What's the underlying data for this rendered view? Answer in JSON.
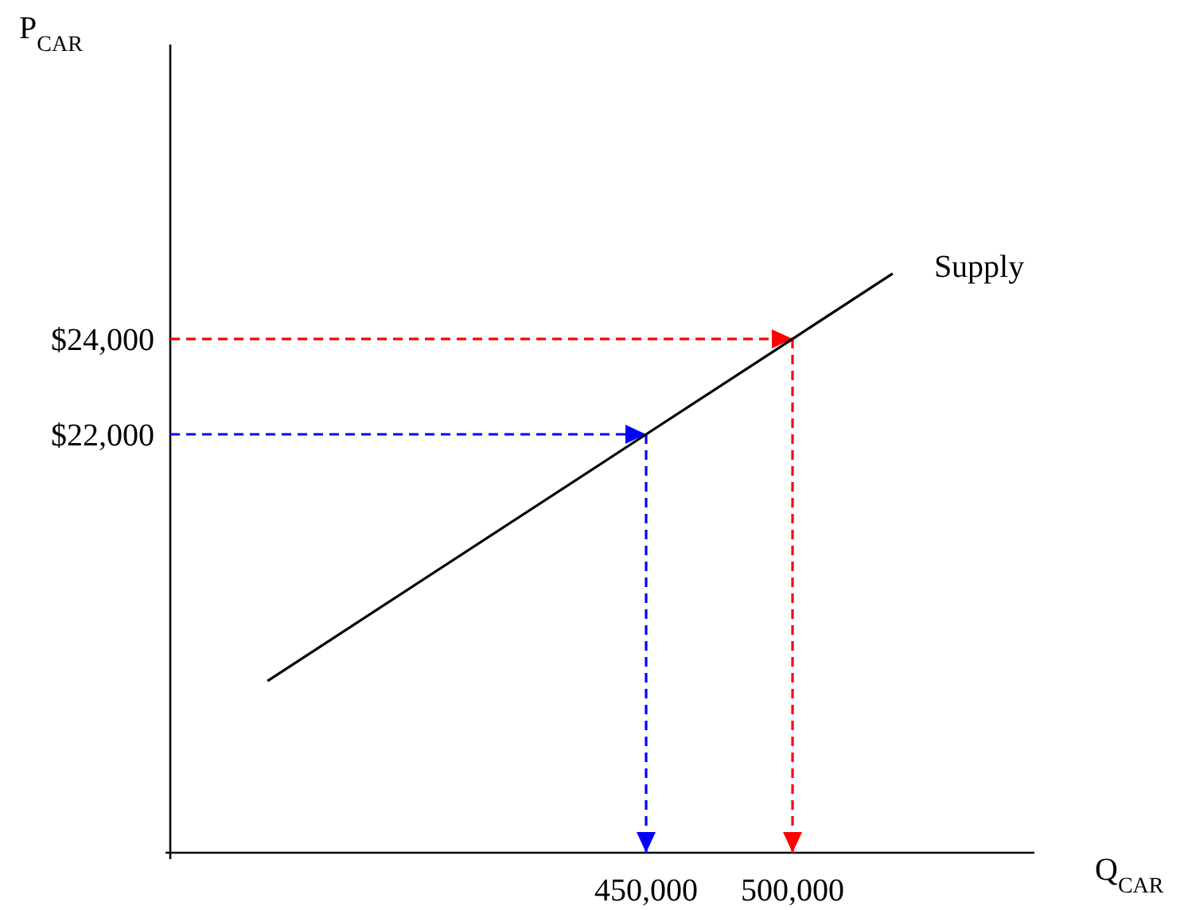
{
  "chart_data": {
    "type": "line",
    "xlabel": "Q$_{CAR}$",
    "ylabel": "P$_{CAR}$",
    "xlim": [
      287500,
      582600
    ],
    "ylim": [
      13230,
      30170
    ],
    "xticks": [
      {
        "value": 450000,
        "label": "450,000"
      },
      {
        "value": 500000,
        "label": "500,000"
      }
    ],
    "yticks": [
      {
        "value": 22000,
        "label": "$22,000"
      },
      {
        "value": 24000,
        "label": "$24,000"
      }
    ],
    "grid": false,
    "legend": false,
    "marker": "none",
    "series": [
      {
        "name": "Supply",
        "color": "#000000",
        "line_style": "solid",
        "x": [
          320700,
          450000,
          500000,
          534200
        ],
        "values": [
          16830,
          22000,
          24000,
          25370
        ]
      }
    ],
    "ref_lines": [
      {
        "axis": "y",
        "value": 22000,
        "color": "#0000ff",
        "line_style": "dashed"
      },
      {
        "axis": "x",
        "value": 450000,
        "color": "#0000ff",
        "line_style": "dashed"
      },
      {
        "axis": "y",
        "value": 24000,
        "color": "#ff0000",
        "line_style": "dashed"
      },
      {
        "axis": "x",
        "value": 500000,
        "color": "#ff0000",
        "line_style": "dashed"
      }
    ]
  }
}
